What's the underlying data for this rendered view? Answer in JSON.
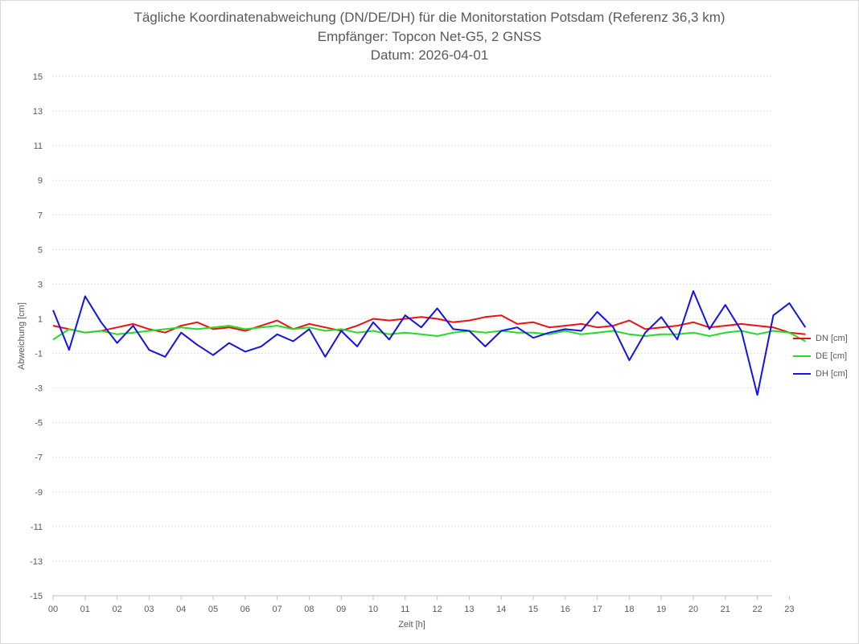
{
  "chart_data": {
    "type": "line",
    "title": "Tägliche Koordinatenabweichung (DN/DE/DH) für die Monitorstation Potsdam (Referenz 36,3 km)",
    "subtitle": "Empfänger: Topcon Net-G5, 2 GNSS",
    "date_line": "Datum: 2026-04-01",
    "xlabel": "Zeit [h]",
    "ylabel": "Abweichung [cm]",
    "ylim": [
      -15,
      15
    ],
    "xlim": [
      0,
      24
    ],
    "y_ticks": [
      "15",
      "13",
      "11",
      "9",
      "7",
      "5",
      "3",
      "1",
      "-1",
      "-3",
      "-5",
      "-7",
      "-9",
      "-11",
      "-13",
      "-15"
    ],
    "x_ticks": [
      "00",
      "01",
      "02",
      "03",
      "04",
      "05",
      "06",
      "07",
      "08",
      "09",
      "10",
      "11",
      "12",
      "13",
      "14",
      "15",
      "16",
      "17",
      "18",
      "19",
      "20",
      "21",
      "22",
      "23"
    ],
    "grid": "horizontal-dotted",
    "legend_position": "right",
    "series": [
      {
        "name": "DN [cm]",
        "color": "#ee1111",
        "x": [
          0,
          0.5,
          1,
          1.5,
          2,
          2.5,
          3,
          3.5,
          4,
          4.5,
          5,
          5.5,
          6,
          6.5,
          7,
          7.5,
          8,
          8.5,
          9,
          9.5,
          10,
          10.5,
          11,
          11.5,
          12,
          12.5,
          13,
          13.5,
          14,
          14.5,
          15,
          15.5,
          16,
          16.5,
          17,
          17.5,
          18,
          18.5,
          19,
          19.5,
          20,
          20.5,
          21,
          21.5,
          22,
          22.5,
          23,
          23.5
        ],
        "values": [
          0.6,
          0.4,
          0.2,
          0.3,
          0.5,
          0.7,
          0.4,
          0.2,
          0.6,
          0.8,
          0.4,
          0.5,
          0.3,
          0.6,
          0.9,
          0.4,
          0.7,
          0.5,
          0.3,
          0.6,
          1,
          0.9,
          1,
          1.1,
          1,
          0.8,
          0.9,
          1.1,
          1.2,
          0.7,
          0.8,
          0.5,
          0.6,
          0.7,
          0.5,
          0.6,
          0.9,
          0.4,
          0.5,
          0.6,
          0.8,
          0.5,
          0.6,
          0.7,
          0.6,
          0.5,
          0.2,
          0.1
        ]
      },
      {
        "name": "DE [cm]",
        "color": "#22dd22",
        "x": [
          0,
          0.5,
          1,
          1.5,
          2,
          2.5,
          3,
          3.5,
          4,
          4.5,
          5,
          5.5,
          6,
          6.5,
          7,
          7.5,
          8,
          8.5,
          9,
          9.5,
          10,
          10.5,
          11,
          11.5,
          12,
          12.5,
          13,
          13.5,
          14,
          14.5,
          15,
          15.5,
          16,
          16.5,
          17,
          17.5,
          18,
          18.5,
          19,
          19.5,
          20,
          20.5,
          21,
          21.5,
          22,
          22.5,
          23,
          23.5
        ],
        "values": [
          -0.2,
          0.4,
          0.2,
          0.3,
          0.1,
          0.2,
          0.3,
          0.4,
          0.5,
          0.4,
          0.5,
          0.6,
          0.4,
          0.5,
          0.6,
          0.4,
          0.5,
          0.3,
          0.4,
          0.2,
          0.3,
          0.1,
          0.2,
          0.1,
          0,
          0.2,
          0.3,
          0.2,
          0.3,
          0.2,
          0.2,
          0.1,
          0.3,
          0.1,
          0.2,
          0.3,
          0.1,
          0,
          0.1,
          0.1,
          0.2,
          0,
          0.2,
          0.3,
          0.1,
          0.3,
          0.2,
          -0.3
        ]
      },
      {
        "name": "DH [cm]",
        "color": "#1414e6",
        "x": [
          0,
          0.5,
          1,
          1.5,
          2,
          2.5,
          3,
          3.5,
          4,
          4.5,
          5,
          5.5,
          6,
          6.5,
          7,
          7.5,
          8,
          8.5,
          9,
          9.5,
          10,
          10.5,
          11,
          11.5,
          12,
          12.5,
          13,
          13.5,
          14,
          14.5,
          15,
          15.5,
          16,
          16.5,
          17,
          17.5,
          18,
          18.5,
          19,
          19.5,
          20,
          20.5,
          21,
          21.5,
          22,
          22.5,
          23,
          23.5
        ],
        "values": [
          1.5,
          -0.8,
          2.3,
          0.8,
          -0.4,
          0.6,
          -0.8,
          -1.2,
          0.2,
          -0.5,
          -1.1,
          -0.4,
          -0.9,
          -0.6,
          0.1,
          -0.3,
          0.4,
          -1.2,
          0.3,
          -0.6,
          0.8,
          -0.2,
          1.2,
          0.5,
          1.6,
          0.4,
          0.3,
          -0.6,
          0.3,
          0.5,
          -0.1,
          0.2,
          0.4,
          0.3,
          1.4,
          0.5,
          -1.4,
          0.2,
          1.1,
          -0.2,
          2.6,
          0.4,
          1.8,
          0.3,
          -3.4,
          1.2,
          1.9,
          0.5
        ]
      }
    ]
  }
}
